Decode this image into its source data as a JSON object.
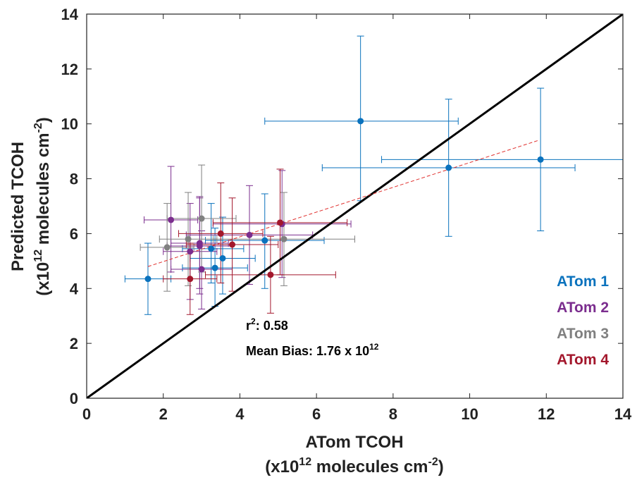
{
  "chart_data": {
    "type": "scatter",
    "xlabel_line1": "ATom TCOH",
    "xlabel_line2_prefix": "(x10",
    "xlabel_line2_exp": "12",
    "xlabel_line2_mid": " molecules cm",
    "xlabel_line2_exp2": "-2",
    "xlabel_line2_suffix": ")",
    "ylabel_line1": "Predicted TCOH",
    "ylabel_line2_prefix": "(x10",
    "ylabel_line2_exp": "12",
    "ylabel_line2_mid": " molecules cm",
    "ylabel_line2_exp2": "-2",
    "ylabel_line2_suffix": ")",
    "xlim": [
      0,
      14
    ],
    "ylim": [
      0,
      14
    ],
    "xticks": [
      "0",
      "2",
      "4",
      "6",
      "8",
      "10",
      "12",
      "14"
    ],
    "yticks": [
      "0",
      "2",
      "4",
      "6",
      "8",
      "10",
      "12",
      "14"
    ],
    "grid": false,
    "legend_position": "right",
    "one_to_one_line": {
      "x": [
        0,
        14
      ],
      "y": [
        0,
        14
      ],
      "color": "#000000"
    },
    "regression_line": {
      "x": [
        1.6,
        11.8
      ],
      "y": [
        4.8,
        9.4
      ],
      "color": "#e0302e",
      "style": "dashed"
    },
    "annotations": {
      "r2_prefix": "r",
      "r2_exp": "2",
      "r2_value": ": 0.58",
      "bias_text": "Mean Bias: 1.76 x 10",
      "bias_exp": "12"
    },
    "series": [
      {
        "name": "ATom 1",
        "color": "#0a72bd",
        "points": [
          {
            "x": 1.6,
            "y": 4.35,
            "xerr": [
              1.0,
              2.2
            ],
            "yerr": [
              3.05,
              5.65
            ]
          },
          {
            "x": 3.25,
            "y": 5.45,
            "xerr": [
              2.5,
              4.1
            ],
            "yerr": [
              4.2,
              7.1
            ]
          },
          {
            "x": 3.35,
            "y": 4.75,
            "xerr": [
              2.5,
              4.2
            ],
            "yerr": [
              3.35,
              6.2
            ]
          },
          {
            "x": 3.55,
            "y": 5.1,
            "xerr": [
              2.7,
              4.4
            ],
            "yerr": [
              3.8,
              6.6
            ]
          },
          {
            "x": 4.65,
            "y": 5.75,
            "xerr": [
              3.1,
              6.2
            ],
            "yerr": [
              4.0,
              7.45
            ]
          },
          {
            "x": 7.15,
            "y": 10.1,
            "xerr": [
              4.65,
              9.7
            ],
            "yerr": [
              7.2,
              13.2
            ]
          },
          {
            "x": 9.45,
            "y": 8.4,
            "xerr": [
              6.15,
              12.75
            ],
            "yerr": [
              5.9,
              10.9
            ]
          },
          {
            "x": 11.85,
            "y": 8.7,
            "xerr": [
              7.7,
              14.0
            ],
            "yerr": [
              6.1,
              11.3
            ]
          }
        ]
      },
      {
        "name": "ATom 2",
        "color": "#7b2d8e",
        "points": [
          {
            "x": 2.2,
            "y": 6.5,
            "xerr": [
              1.5,
              2.9
            ],
            "yerr": [
              4.6,
              8.45
            ]
          },
          {
            "x": 2.7,
            "y": 5.35,
            "xerr": [
              2.0,
              3.4
            ],
            "yerr": [
              3.6,
              7.1
            ]
          },
          {
            "x": 2.95,
            "y": 5.55,
            "xerr": [
              2.1,
              3.8
            ],
            "yerr": [
              3.8,
              7.35
            ]
          },
          {
            "x": 2.95,
            "y": 5.65,
            "xerr": [
              2.2,
              3.7
            ],
            "yerr": [
              4.0,
              7.3
            ]
          },
          {
            "x": 3.0,
            "y": 4.7,
            "xerr": [
              2.2,
              3.8
            ],
            "yerr": [
              3.25,
              6.1
            ]
          },
          {
            "x": 4.25,
            "y": 5.95,
            "xerr": [
              2.6,
              5.9
            ],
            "yerr": [
              4.15,
              7.75
            ]
          },
          {
            "x": 5.1,
            "y": 6.35,
            "xerr": [
              3.3,
              6.9
            ],
            "yerr": [
              4.4,
              8.3
            ]
          }
        ]
      },
      {
        "name": "ATom 3",
        "color": "#808080",
        "points": [
          {
            "x": 2.1,
            "y": 5.5,
            "xerr": [
              1.4,
              2.8
            ],
            "yerr": [
              3.9,
              7.1
            ]
          },
          {
            "x": 2.65,
            "y": 5.8,
            "xerr": [
              1.9,
              3.4
            ],
            "yerr": [
              4.1,
              7.5
            ]
          },
          {
            "x": 3.0,
            "y": 6.55,
            "xerr": [
              2.1,
              3.9
            ],
            "yerr": [
              4.6,
              8.5
            ]
          },
          {
            "x": 5.15,
            "y": 5.8,
            "xerr": [
              3.3,
              7.0
            ],
            "yerr": [
              4.1,
              7.5
            ]
          }
        ]
      },
      {
        "name": "ATom 4",
        "color": "#a3172c",
        "points": [
          {
            "x": 2.7,
            "y": 4.35,
            "xerr": [
              2.0,
              3.4
            ],
            "yerr": [
              3.05,
              5.65
            ]
          },
          {
            "x": 3.5,
            "y": 6.0,
            "xerr": [
              2.4,
              4.6
            ],
            "yerr": [
              4.2,
              7.85
            ]
          },
          {
            "x": 3.8,
            "y": 5.6,
            "xerr": [
              2.6,
              5.0
            ],
            "yerr": [
              3.9,
              7.3
            ]
          },
          {
            "x": 4.8,
            "y": 4.5,
            "xerr": [
              3.1,
              6.5
            ],
            "yerr": [
              3.1,
              5.9
            ]
          },
          {
            "x": 5.05,
            "y": 6.4,
            "xerr": [
              3.3,
              6.8
            ],
            "yerr": [
              4.5,
              8.35
            ]
          }
        ]
      }
    ]
  }
}
